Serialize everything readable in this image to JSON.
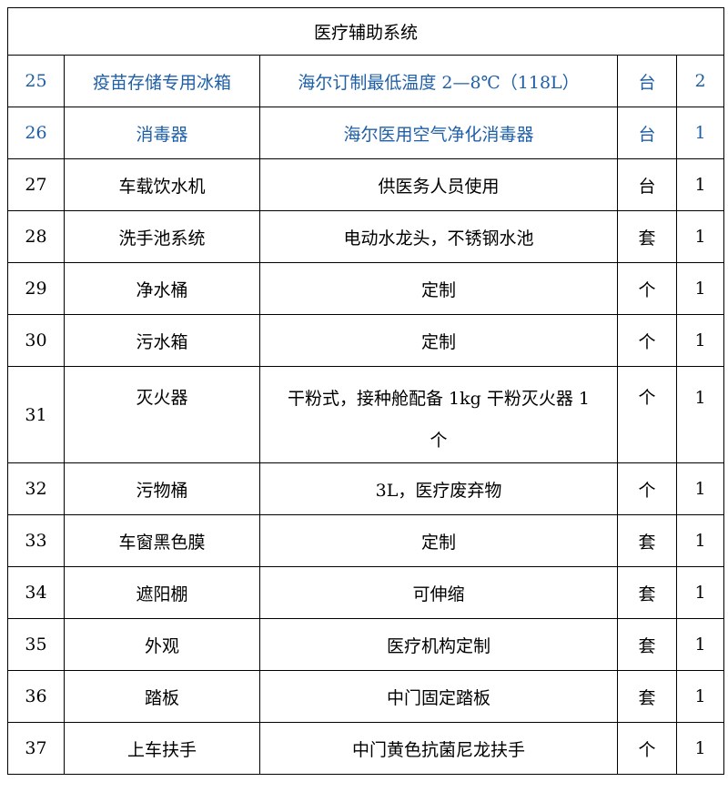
{
  "table": {
    "title": "医疗辅助系统",
    "rows": [
      [
        "25",
        "疫苗存储专用冰箱",
        "海尔订制最低温度 2—8℃（118L）",
        "台",
        "2"
      ],
      [
        "26",
        "消毒器",
        "海尔医用空气净化消毒器",
        "台",
        "1"
      ],
      [
        "27",
        "车载饮水机",
        "供医务人员使用",
        "台",
        "1"
      ],
      [
        "28",
        "洗手池系统",
        "电动水龙头，不锈钢水池",
        "套",
        "1"
      ],
      [
        "29",
        "净水桶",
        "定制",
        "个",
        "1"
      ],
      [
        "30",
        "污水箱",
        "定制",
        "个",
        "1"
      ],
      [
        "31",
        "灭火器",
        "干粉式，接种舱配备 1kg 干粉灭火器 1 个",
        "个",
        "1"
      ],
      [
        "32",
        "污物桶",
        "3L，医疗废弃物",
        "个",
        "1"
      ],
      [
        "33",
        "车窗黑色膜",
        "定制",
        "套",
        "1"
      ],
      [
        "34",
        "遮阳棚",
        "可伸缩",
        "套",
        "1"
      ],
      [
        "35",
        "外观",
        "医疗机构定制",
        "套",
        "1"
      ],
      [
        "36",
        "踏板",
        "中门固定踏板",
        "套",
        "1"
      ],
      [
        "37",
        "上车扶手",
        "中门黄色抗菌尼龙扶手",
        "个",
        "1"
      ]
    ]
  }
}
